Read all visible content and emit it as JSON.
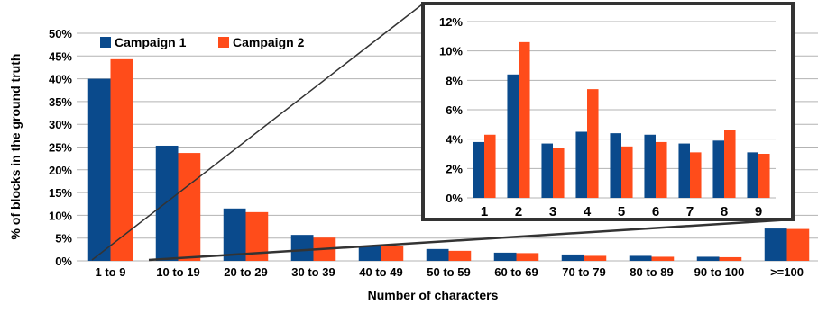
{
  "colors": {
    "campaign1": "#0a4a8c",
    "campaign2": "#ff4c1a",
    "grid": "#b3b3b3",
    "frame": "#333333"
  },
  "chart_data": [
    {
      "type": "bar",
      "categories": [
        "1 to 9",
        "10 to 19",
        "20 to 29",
        "30 to 39",
        "40 to 49",
        "50 to 59",
        "60 to 69",
        "70 to 79",
        "80 to 89",
        "90 to 100",
        ">=100"
      ],
      "series": [
        {
          "name": "Campaign 1",
          "values": [
            40,
            25.3,
            11.5,
            5.7,
            3.3,
            2.6,
            1.8,
            1.4,
            1.1,
            0.9,
            7.1
          ]
        },
        {
          "name": "Campaign 2",
          "values": [
            44.3,
            23.7,
            10.7,
            5.1,
            3.3,
            2.2,
            1.7,
            1.1,
            0.9,
            0.8,
            7.0
          ]
        }
      ],
      "y_ticks": [
        "0%",
        "5%",
        "10%",
        "15%",
        "20%",
        "25%",
        "30%",
        "35%",
        "40%",
        "45%",
        "50%"
      ],
      "ylim": [
        0,
        50
      ],
      "xlabel": "Number of characters",
      "ylabel": "% of blocks in the ground truth",
      "legend": "top-left",
      "grid": true
    },
    {
      "type": "bar",
      "categories": [
        "1",
        "2",
        "3",
        "4",
        "5",
        "6",
        "7",
        "8",
        "9"
      ],
      "series": [
        {
          "name": "Campaign 1",
          "values": [
            3.8,
            8.4,
            3.7,
            4.5,
            4.4,
            4.3,
            3.7,
            3.9,
            3.1
          ]
        },
        {
          "name": "Campaign 2",
          "values": [
            4.3,
            10.6,
            3.4,
            7.4,
            3.5,
            3.8,
            3.1,
            4.6,
            3.0
          ]
        }
      ],
      "y_ticks": [
        "0%",
        "2%",
        "4%",
        "6%",
        "8%",
        "10%",
        "12%"
      ],
      "ylim": [
        0,
        12
      ],
      "grid": true
    }
  ]
}
